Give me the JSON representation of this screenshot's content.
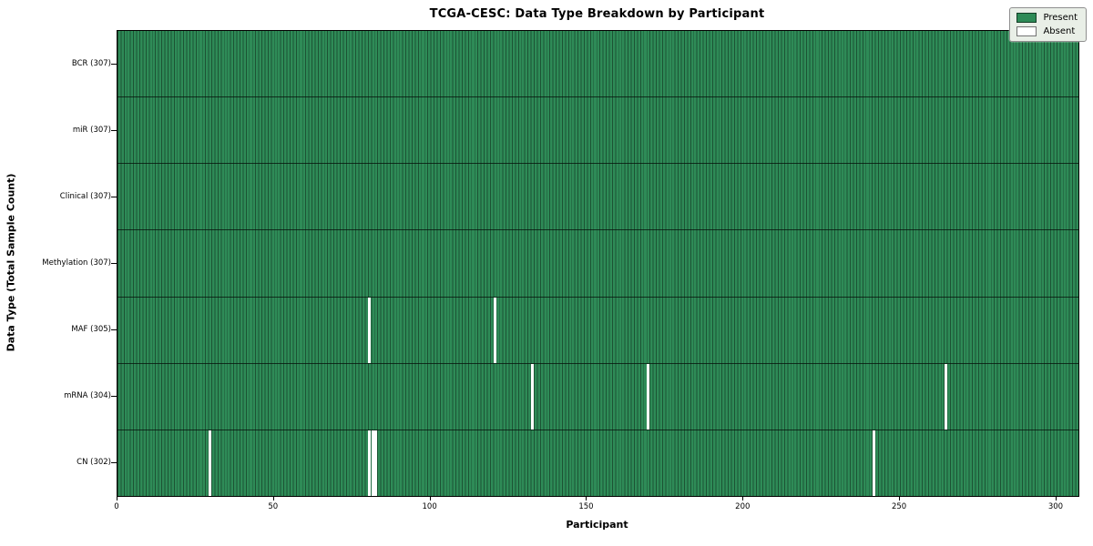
{
  "chart_data": {
    "type": "heatmap",
    "title": "TCGA-CESC: Data Type Breakdown by Participant",
    "xlabel": "Participant",
    "ylabel": "Data Type (Total Sample Count)",
    "n_participants": 307,
    "x_range": [
      0,
      307
    ],
    "x_ticks": [
      0,
      50,
      100,
      150,
      200,
      250,
      300
    ],
    "grid": "cell-edges",
    "legend_position": "upper right",
    "rows": [
      {
        "name": "BCR",
        "label": "BCR (307)",
        "total_present": 307,
        "absent_participants": []
      },
      {
        "name": "miR",
        "label": "miR (307)",
        "total_present": 307,
        "absent_participants": []
      },
      {
        "name": "Clinical",
        "label": "Clinical (307)",
        "total_present": 307,
        "absent_participants": []
      },
      {
        "name": "Methylation",
        "label": "Methylation (307)",
        "total_present": 307,
        "absent_participants": []
      },
      {
        "name": "MAF",
        "label": "MAF (305)",
        "total_present": 305,
        "absent_participants": [
          80,
          120
        ]
      },
      {
        "name": "mRNA",
        "label": "mRNA (304)",
        "total_present": 304,
        "absent_participants": [
          132,
          169,
          264
        ]
      },
      {
        "name": "CN",
        "label": "CN (302)",
        "total_present": 302,
        "absent_participants": [
          29,
          80,
          81,
          82,
          241
        ]
      }
    ],
    "legend": [
      {
        "label": "Present",
        "color": "#2e8b57"
      },
      {
        "label": "Absent",
        "color": "#ffffff"
      }
    ],
    "colors": {
      "present": "#2e8b57",
      "absent": "#ffffff",
      "cell_edge": "rgba(0,0,0,0.40)",
      "row_separator": "rgba(5,15,10,0.75)",
      "plot_border": "#000000",
      "legend_background": "#e9efe7"
    }
  }
}
